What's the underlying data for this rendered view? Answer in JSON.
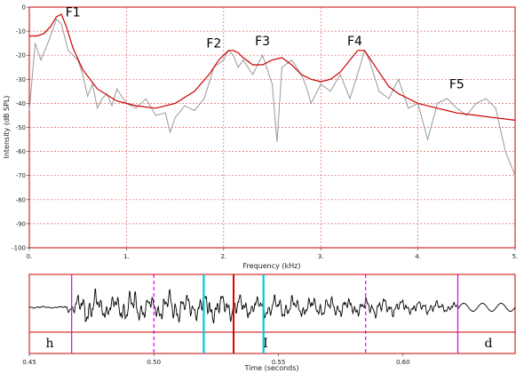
{
  "chart_data": [
    {
      "type": "line",
      "xlabel": "Frequency (kHz)",
      "ylabel": "Intensity (dB SPL)",
      "xlim": [
        0,
        5
      ],
      "ylim": [
        -100,
        0
      ],
      "xticks": [
        "0.",
        "1.",
        "2.",
        "3.",
        "4.",
        "5."
      ],
      "yticks": [
        "0",
        "-10",
        "-20",
        "-30",
        "-40",
        "-50",
        "-60",
        "-70",
        "-80",
        "-90",
        "-100"
      ],
      "grid": true,
      "series": [
        {
          "color": "#999999",
          "x": [
            0.0,
            0.06,
            0.12,
            0.2,
            0.28,
            0.33,
            0.4,
            0.5,
            0.55,
            0.6,
            0.65,
            0.7,
            0.75,
            0.8,
            0.85,
            0.9,
            1.0,
            1.1,
            1.2,
            1.3,
            1.4,
            1.45,
            1.5,
            1.6,
            1.7,
            1.8,
            1.9,
            2.0,
            2.05,
            2.1,
            2.15,
            2.2,
            2.3,
            2.4,
            2.5,
            2.55,
            2.6,
            2.7,
            2.8,
            2.85,
            2.9,
            3.0,
            3.1,
            3.2,
            3.3,
            3.4,
            3.45,
            3.5,
            3.6,
            3.7,
            3.8,
            3.9,
            4.0,
            4.1,
            4.2,
            4.3,
            4.4,
            4.5,
            4.6,
            4.7,
            4.8,
            4.9,
            5.0
          ],
          "y": [
            -43,
            -15,
            -22,
            -14,
            -5,
            -7,
            -18,
            -22,
            -28,
            -37,
            -32,
            -42,
            -38,
            -36,
            -41,
            -34,
            -40,
            -42,
            -38,
            -45,
            -44,
            -52,
            -46,
            -41,
            -43,
            -38,
            -25,
            -22,
            -18,
            -20,
            -25,
            -22,
            -28,
            -20,
            -32,
            -56,
            -25,
            -22,
            -28,
            -33,
            -40,
            -32,
            -35,
            -28,
            -38,
            -25,
            -18,
            -22,
            -35,
            -38,
            -30,
            -42,
            -40,
            -55,
            -40,
            -38,
            -42,
            -45,
            -40,
            -38,
            -42,
            -60,
            -70
          ]
        },
        {
          "color": "#cc0000",
          "x": [
            0.0,
            0.08,
            0.15,
            0.22,
            0.28,
            0.33,
            0.38,
            0.45,
            0.55,
            0.7,
            0.9,
            1.1,
            1.3,
            1.5,
            1.7,
            1.85,
            1.95,
            2.05,
            2.1,
            2.15,
            2.2,
            2.3,
            2.4,
            2.5,
            2.6,
            2.7,
            2.8,
            2.9,
            3.0,
            3.1,
            3.2,
            3.3,
            3.38,
            3.45,
            3.5,
            3.6,
            3.7,
            3.8,
            3.9,
            4.0,
            4.2,
            4.4,
            4.6,
            4.8,
            5.0
          ],
          "y": [
            -12,
            -12,
            -11,
            -8,
            -4,
            -3,
            -8,
            -17,
            -26,
            -34,
            -39,
            -41,
            -42,
            -40,
            -35,
            -28,
            -22,
            -18,
            -18,
            -19,
            -21,
            -24,
            -24,
            -22,
            -21,
            -24,
            -28,
            -30,
            -31,
            -30,
            -27,
            -22,
            -18,
            -18,
            -21,
            -27,
            -33,
            -36,
            -38,
            -40,
            -42,
            -44,
            -45,
            -46,
            -47
          ]
        }
      ],
      "annotations": [
        {
          "text": "F1",
          "x": 0.45,
          "y": -2
        },
        {
          "text": "F2",
          "x": 1.9,
          "y": -15
        },
        {
          "text": "F3",
          "x": 2.4,
          "y": -14
        },
        {
          "text": "F4",
          "x": 3.35,
          "y": -14
        },
        {
          "text": "F5",
          "x": 4.4,
          "y": -32
        }
      ]
    },
    {
      "type": "line",
      "xlabel": "Time (seconds)",
      "xlim": [
        0.45,
        0.645
      ],
      "xticks": [
        "0.45",
        "0.50",
        "0.55",
        "0.60"
      ],
      "segments": [
        "h",
        "I",
        "d"
      ],
      "boundaries": [
        {
          "t": 0.467,
          "color": "#dd00dd",
          "style": "solid"
        },
        {
          "t": 0.5,
          "color": "#dd00dd",
          "style": "dashed"
        },
        {
          "t": 0.52,
          "color": "#00ccdd",
          "style": "solid"
        },
        {
          "t": 0.532,
          "color": "#dd0000",
          "style": "solid"
        },
        {
          "t": 0.544,
          "color": "#00ccdd",
          "style": "solid"
        },
        {
          "t": 0.585,
          "color": "#dd00dd",
          "style": "dashed"
        },
        {
          "t": 0.622,
          "color": "#dd00dd",
          "style": "solid"
        }
      ]
    }
  ]
}
